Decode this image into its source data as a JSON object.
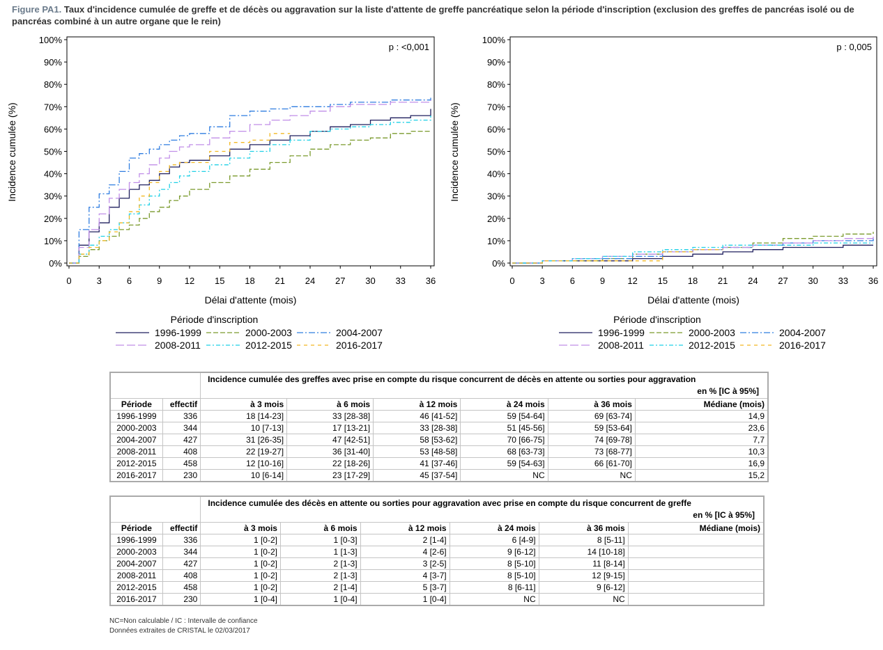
{
  "figure": {
    "label": "Figure PA1.",
    "title": "Taux d'incidence cumulée de greffe et de décès ou aggravation sur la liste d'attente de greffe pancréatique selon la période d'inscription (exclusion des greffes de pancréas isolé ou de pancréas combiné à un autre organe que le rein)"
  },
  "legend": {
    "title": "Période d'inscription",
    "items": [
      {
        "name": "1996-1999",
        "color": "#1f1f5e",
        "dash": "solid"
      },
      {
        "name": "2000-2003",
        "color": "#7a9a2c",
        "dash": "dash"
      },
      {
        "name": "2004-2007",
        "color": "#2f7de0",
        "dash": "dashdot"
      },
      {
        "name": "2008-2011",
        "color": "#c08ee8",
        "dash": "longdash"
      },
      {
        "name": "2012-2015",
        "color": "#1ed0e6",
        "dash": "dashdot2"
      },
      {
        "name": "2016-2017",
        "color": "#f2b822",
        "dash": "shortdash"
      }
    ]
  },
  "chart_data": [
    {
      "type": "line",
      "xlabel": "Délai d'attente (mois)",
      "ylabel": "Incidence cumulée (%)",
      "annotation": "p : <0,001",
      "xlim": [
        0,
        36
      ],
      "ylim": [
        0,
        100
      ],
      "xticks": [
        0,
        3,
        6,
        9,
        12,
        15,
        18,
        21,
        24,
        27,
        30,
        33,
        36
      ],
      "yticks": [
        "0%",
        "10%",
        "20%",
        "30%",
        "40%",
        "50%",
        "60%",
        "70%",
        "80%",
        "90%",
        "100%"
      ],
      "series": [
        {
          "name": "1996-1999",
          "x": [
            0,
            1,
            2,
            3,
            4,
            5,
            6,
            7,
            8,
            9,
            10,
            11,
            12,
            14,
            16,
            18,
            20,
            22,
            24,
            26,
            28,
            30,
            32,
            34,
            36
          ],
          "y": [
            0,
            8,
            14,
            18,
            25,
            29,
            33,
            35,
            37,
            40,
            43,
            45,
            46,
            48,
            51,
            53,
            55,
            57,
            59,
            61,
            62,
            64,
            65,
            66,
            69
          ]
        },
        {
          "name": "2000-2003",
          "x": [
            0,
            1,
            2,
            3,
            4,
            5,
            6,
            7,
            8,
            9,
            10,
            11,
            12,
            14,
            16,
            18,
            20,
            22,
            24,
            26,
            28,
            30,
            32,
            34,
            36
          ],
          "y": [
            0,
            3,
            6,
            10,
            12,
            15,
            17,
            20,
            23,
            25,
            28,
            30,
            33,
            36,
            39,
            42,
            45,
            48,
            51,
            53,
            55,
            56,
            58,
            59,
            59
          ]
        },
        {
          "name": "2004-2007",
          "x": [
            0,
            1,
            2,
            3,
            4,
            5,
            6,
            7,
            8,
            9,
            10,
            11,
            12,
            14,
            16,
            18,
            20,
            22,
            24,
            26,
            28,
            30,
            32,
            34,
            36
          ],
          "y": [
            0,
            15,
            25,
            31,
            35,
            41,
            47,
            49,
            51,
            53,
            55,
            57,
            58,
            61,
            66,
            68,
            69,
            70,
            70,
            71,
            72,
            72,
            73,
            73,
            74
          ]
        },
        {
          "name": "2008-2011",
          "x": [
            0,
            1,
            2,
            3,
            4,
            5,
            6,
            7,
            8,
            9,
            10,
            11,
            12,
            14,
            16,
            18,
            20,
            22,
            24,
            26,
            28,
            30,
            32,
            34,
            36
          ],
          "y": [
            0,
            7,
            15,
            22,
            29,
            33,
            36,
            40,
            44,
            47,
            50,
            52,
            53,
            56,
            59,
            62,
            64,
            66,
            68,
            70,
            71,
            71,
            72,
            72,
            73
          ]
        },
        {
          "name": "2012-2015",
          "x": [
            0,
            1,
            2,
            3,
            4,
            5,
            6,
            7,
            8,
            9,
            10,
            11,
            12,
            14,
            16,
            18,
            20,
            22,
            24,
            26,
            28,
            30,
            32,
            34,
            36
          ],
          "y": [
            0,
            4,
            8,
            12,
            15,
            18,
            22,
            26,
            30,
            33,
            36,
            39,
            41,
            44,
            47,
            50,
            53,
            55,
            59,
            60,
            61,
            62,
            63,
            64,
            66
          ]
        },
        {
          "name": "2016-2017",
          "x": [
            0,
            1,
            2,
            3,
            4,
            5,
            6,
            7,
            8,
            9,
            10,
            11,
            12,
            14,
            16,
            18,
            20,
            22
          ],
          "y": [
            0,
            4,
            7,
            10,
            14,
            18,
            23,
            30,
            36,
            41,
            44,
            45,
            45,
            50,
            54,
            55,
            58,
            58
          ]
        }
      ]
    },
    {
      "type": "line",
      "xlabel": "Délai d'attente (mois)",
      "ylabel": "Incidence cumulée (%)",
      "annotation": "p : 0,005",
      "xlim": [
        0,
        36
      ],
      "ylim": [
        0,
        100
      ],
      "xticks": [
        0,
        3,
        6,
        9,
        12,
        15,
        18,
        21,
        24,
        27,
        30,
        33,
        36
      ],
      "yticks": [
        "0%",
        "10%",
        "20%",
        "30%",
        "40%",
        "50%",
        "60%",
        "70%",
        "80%",
        "90%",
        "100%"
      ],
      "series": [
        {
          "name": "1996-1999",
          "x": [
            0,
            3,
            6,
            9,
            12,
            15,
            18,
            21,
            24,
            27,
            30,
            33,
            36
          ],
          "y": [
            0,
            1,
            1,
            1,
            2,
            3,
            4,
            5,
            6,
            7,
            7,
            8,
            8
          ]
        },
        {
          "name": "2000-2003",
          "x": [
            0,
            3,
            6,
            9,
            12,
            15,
            18,
            21,
            24,
            27,
            30,
            33,
            36
          ],
          "y": [
            0,
            1,
            1,
            2,
            4,
            5,
            6,
            7,
            9,
            11,
            12,
            13,
            14
          ]
        },
        {
          "name": "2004-2007",
          "x": [
            0,
            3,
            6,
            9,
            12,
            15,
            18,
            21,
            24,
            27,
            30,
            33,
            36
          ],
          "y": [
            0,
            1,
            2,
            2,
            3,
            5,
            6,
            7,
            8,
            9,
            10,
            10,
            11
          ]
        },
        {
          "name": "2008-2011",
          "x": [
            0,
            3,
            6,
            9,
            12,
            15,
            18,
            21,
            24,
            27,
            30,
            33,
            36
          ],
          "y": [
            0,
            1,
            2,
            3,
            4,
            5,
            6,
            7,
            8,
            9,
            10,
            11,
            12
          ]
        },
        {
          "name": "2012-2015",
          "x": [
            0,
            3,
            6,
            9,
            12,
            15,
            18,
            21,
            24,
            27,
            30,
            33,
            36
          ],
          "y": [
            0,
            1,
            2,
            3,
            5,
            6,
            7,
            8,
            8,
            8,
            9,
            9,
            9
          ]
        },
        {
          "name": "2016-2017",
          "x": [
            0,
            3,
            6,
            9,
            12,
            15,
            18,
            21
          ],
          "y": [
            0,
            1,
            1,
            1,
            1,
            5,
            6,
            6
          ]
        }
      ]
    }
  ],
  "table1": {
    "header_line1": "Incidence cumulée des greffes avec prise en compte du risque concurrent de décès en attente ou sorties pour aggravation",
    "header_line2": "en % [IC à 95%]",
    "columns": [
      "Période",
      "effectif",
      "à 3 mois",
      "à 6 mois",
      "à 12 mois",
      "à 24 mois",
      "à 36 mois",
      "Médiane (mois)"
    ],
    "rows": [
      [
        "1996-1999",
        "336",
        "18 [14-23]",
        "33 [28-38]",
        "46 [41-52]",
        "59 [54-64]",
        "69 [63-74]",
        "14,9"
      ],
      [
        "2000-2003",
        "344",
        "10 [7-13]",
        "17 [13-21]",
        "33 [28-38]",
        "51 [45-56]",
        "59 [53-64]",
        "23,6"
      ],
      [
        "2004-2007",
        "427",
        "31 [26-35]",
        "47 [42-51]",
        "58 [53-62]",
        "70 [66-75]",
        "74 [69-78]",
        "7,7"
      ],
      [
        "2008-2011",
        "408",
        "22 [19-27]",
        "36 [31-40]",
        "53 [48-58]",
        "68 [63-73]",
        "73 [68-77]",
        "10,3"
      ],
      [
        "2012-2015",
        "458",
        "12 [10-16]",
        "22 [18-26]",
        "41 [37-46]",
        "59 [54-63]",
        "66 [61-70]",
        "16,9"
      ],
      [
        "2016-2017",
        "230",
        "10 [6-14]",
        "23 [17-29]",
        "45 [37-54]",
        "NC",
        "NC",
        "15,2"
      ]
    ]
  },
  "table2": {
    "header_line1": "Incidence cumulée des décès en attente ou sorties pour aggravation avec prise en compte du risque concurrent de greffe",
    "header_line2": "en % [IC à 95%]",
    "columns": [
      "Période",
      "effectif",
      "à 3 mois",
      "à 6 mois",
      "à 12 mois",
      "à 24 mois",
      "à 36 mois",
      "Médiane (mois)"
    ],
    "rows": [
      [
        "1996-1999",
        "336",
        "1 [0-2]",
        "1 [0-3]",
        "2 [1-4]",
        "6 [4-9]",
        "8 [5-11]",
        ""
      ],
      [
        "2000-2003",
        "344",
        "1 [0-2]",
        "1 [1-3]",
        "4 [2-6]",
        "9 [6-12]",
        "14 [10-18]",
        ""
      ],
      [
        "2004-2007",
        "427",
        "1 [0-2]",
        "2 [1-3]",
        "3 [2-5]",
        "8 [5-10]",
        "11 [8-14]",
        ""
      ],
      [
        "2008-2011",
        "408",
        "1 [0-2]",
        "2 [1-3]",
        "4 [3-7]",
        "8 [5-10]",
        "12 [9-15]",
        ""
      ],
      [
        "2012-2015",
        "458",
        "1 [0-2]",
        "2 [1-4]",
        "5 [3-7]",
        "8 [6-11]",
        "9 [6-12]",
        ""
      ],
      [
        "2016-2017",
        "230",
        "1 [0-4]",
        "1 [0-4]",
        "1 [0-4]",
        "NC",
        "NC",
        ""
      ]
    ]
  },
  "footnotes": {
    "line1": "NC=Non calculable / IC : Intervalle de confiance",
    "line2": "Données extraites de CRISTAL le 02/03/2017"
  }
}
